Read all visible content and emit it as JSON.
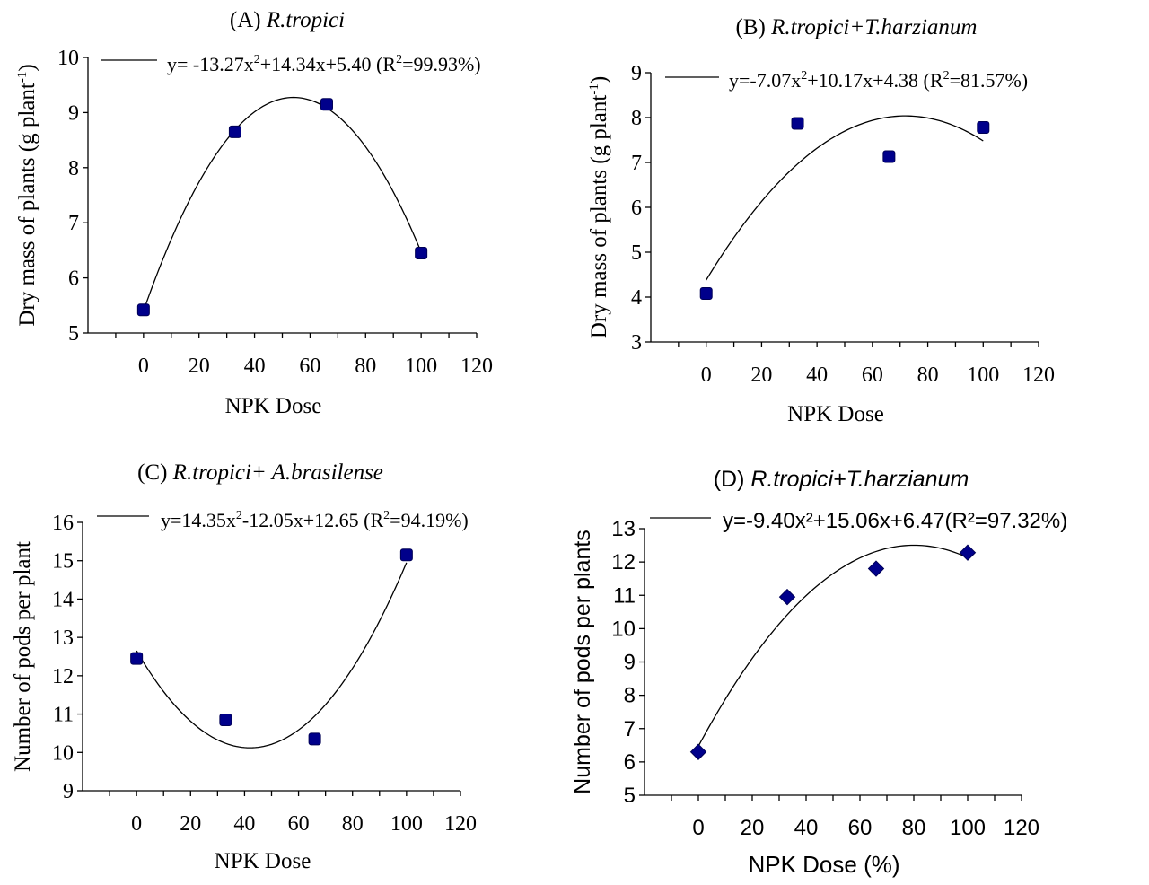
{
  "chart_data": [
    {
      "type": "scatter",
      "panel": "A",
      "title_prefix": "(A) ",
      "title_italic": "R.tropici",
      "xlabel": "NPK Dose",
      "ylabel": "Dry mass of plants (g plant",
      "ylabel_sup": "-1",
      "ylabel_suffix": ")",
      "xlim": [
        -20,
        120
      ],
      "ylim": [
        5,
        10
      ],
      "xticks": [
        "0",
        "20",
        "40",
        "60",
        "80",
        "100",
        "120"
      ],
      "yticks": [
        "5",
        "6",
        "7",
        "8",
        "9",
        "10"
      ],
      "x": [
        0,
        33,
        66,
        100
      ],
      "y": [
        5.42,
        8.65,
        9.15,
        6.45
      ],
      "marker": "square",
      "color": "#00008b",
      "fit": {
        "a": -13.27,
        "b": 14.34,
        "c": 5.4
      },
      "legend": {
        "eq_1": "y= -13.27x",
        "eq_sup": "2",
        "eq_2": "+14.34x+5.40 (R",
        "r2_sup": "2",
        "eq_3": "=99.93%)"
      }
    },
    {
      "type": "scatter",
      "panel": "B",
      "title_prefix": "(B) ",
      "title_italic": "R.tropici+T.harzianum",
      "xlabel": "NPK Dose",
      "ylabel": "Dry mass of plants (g plant",
      "ylabel_sup": "-1",
      "ylabel_suffix": ")",
      "xlim": [
        -20,
        120
      ],
      "ylim": [
        3,
        9
      ],
      "xticks": [
        "0",
        "20",
        "40",
        "60",
        "80",
        "100",
        "120"
      ],
      "yticks": [
        "3",
        "4",
        "5",
        "6",
        "7",
        "8",
        "9"
      ],
      "x": [
        0,
        33,
        66,
        100
      ],
      "y": [
        4.08,
        7.87,
        7.13,
        7.78
      ],
      "marker": "square",
      "color": "#00008b",
      "fit": {
        "a": -7.07,
        "b": 10.17,
        "c": 4.38
      },
      "legend": {
        "eq_1": "y=-7.07x",
        "eq_sup": "2",
        "eq_2": "+10.17x+4.38 (R",
        "r2_sup": "2",
        "eq_3": "=81.57%)"
      }
    },
    {
      "type": "scatter",
      "panel": "C",
      "title_prefix": "(C) ",
      "title_italic": "R.tropici+ A.brasilense",
      "xlabel": "NPK Dose",
      "ylabel": "Number of pods per plant",
      "ylabel_sup": "",
      "ylabel_suffix": "",
      "xlim": [
        -20,
        120
      ],
      "ylim": [
        9,
        16
      ],
      "xticks": [
        "0",
        "20",
        "40",
        "60",
        "80",
        "100",
        "120"
      ],
      "yticks": [
        "9",
        "10",
        "11",
        "12",
        "13",
        "14",
        "15",
        "16"
      ],
      "x": [
        0,
        33,
        66,
        100
      ],
      "y": [
        12.45,
        10.85,
        10.35,
        15.15
      ],
      "marker": "square",
      "color": "#00008b",
      "fit": {
        "a": 14.35,
        "b": -12.05,
        "c": 12.65
      },
      "legend": {
        "eq_1": "y=14.35x",
        "eq_sup": "2",
        "eq_2": "-12.05x+12.65 (R",
        "r2_sup": "2",
        "eq_3": "=94.19%)"
      }
    },
    {
      "type": "scatter",
      "panel": "D",
      "title_prefix": "(D) ",
      "title_italic": "R.tropici+T.harzianum",
      "xlabel": "NPK Dose (%)",
      "ylabel": "Number of pods per plants",
      "ylabel_sup": "",
      "ylabel_suffix": "",
      "xlim": [
        -20,
        120
      ],
      "ylim": [
        5,
        13
      ],
      "xticks": [
        "0",
        "20",
        "40",
        "60",
        "80",
        "100",
        "120"
      ],
      "yticks": [
        "5",
        "6",
        "7",
        "8",
        "9",
        "10",
        "11",
        "12",
        "13"
      ],
      "x": [
        0,
        33,
        66,
        100
      ],
      "y": [
        6.3,
        10.95,
        11.8,
        12.28
      ],
      "marker": "diamond",
      "color": "#00008b",
      "fit": {
        "a": -9.4,
        "b": 15.06,
        "c": 6.47
      },
      "legend": {
        "eq_1": "y=-9.40x²+15.06x+6.47(R²=97.32%)",
        "eq_sup": "",
        "eq_2": "",
        "r2_sup": "",
        "eq_3": ""
      }
    }
  ]
}
